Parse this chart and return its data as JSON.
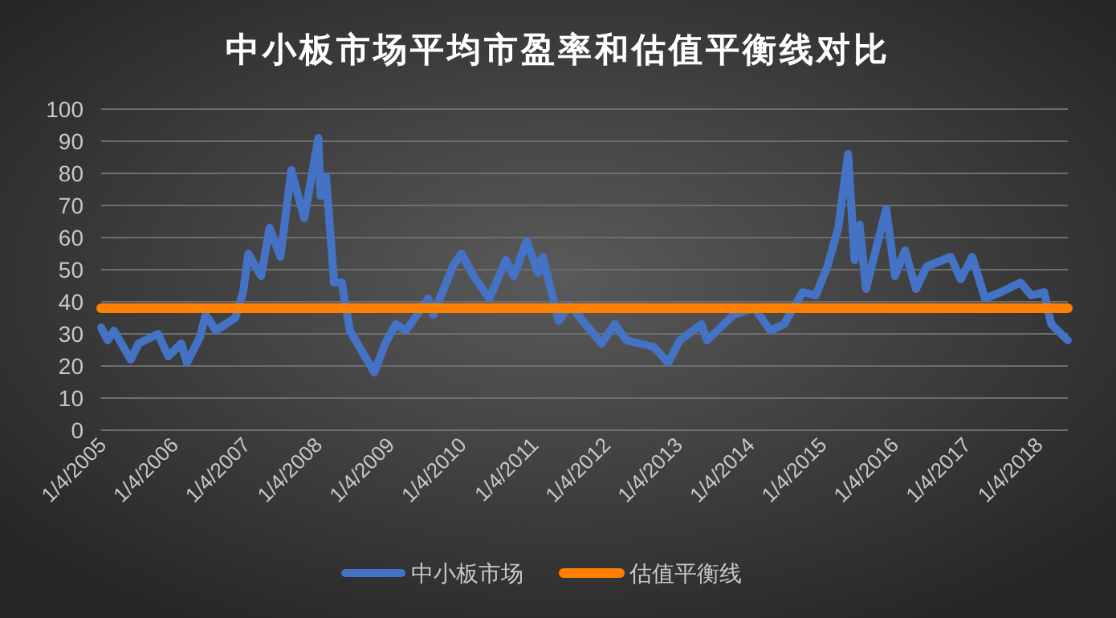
{
  "chart_data": {
    "type": "line",
    "title": "中小板市场平均市盈率和估值平衡线对比",
    "x": [
      "2005-01-04",
      "2005-02-06",
      "2005-03-10",
      "2005-06-03",
      "2005-07-13",
      "2005-10-20",
      "2005-12-10",
      "2006-02-14",
      "2006-03-15",
      "2006-05-20",
      "2006-06-18",
      "2006-08-08",
      "2006-11-15",
      "2006-12-25",
      "2007-01-20",
      "2007-03-26",
      "2007-05-08",
      "2007-07-02",
      "2007-08-26",
      "2007-10-31",
      "2008-01-10",
      "2008-01-21",
      "2008-02-18",
      "2008-03-30",
      "2008-05-08",
      "2008-06-18",
      "2008-10-20",
      "2008-12-14",
      "2009-02-06",
      "2009-03-29",
      "2009-07-20",
      "2009-08-15",
      "2009-11-22",
      "2010-01-04",
      "2010-03-08",
      "2010-05-26",
      "2010-08-18",
      "2010-09-27",
      "2010-12-02",
      "2011-01-27",
      "2011-02-21",
      "2011-05-12",
      "2011-07-08",
      "2011-12-16",
      "2012-02-20",
      "2012-04-20",
      "2012-09-05",
      "2012-11-18",
      "2013-01-16",
      "2013-05-05",
      "2013-06-03",
      "2013-10-16",
      "2014-01-30",
      "2014-04-20",
      "2014-06-28",
      "2014-10-01",
      "2014-12-06",
      "2015-02-03",
      "2015-03-30",
      "2015-05-19",
      "2015-06-21",
      "2015-07-16",
      "2015-08-18",
      "2015-11-28",
      "2016-01-12",
      "2016-03-03",
      "2016-04-27",
      "2016-06-21",
      "2016-10-20",
      "2016-12-10",
      "2017-02-06",
      "2017-04-12",
      "2017-07-02",
      "2017-10-09",
      "2017-12-03",
      "2018-02-06",
      "2018-03-14",
      "2018-06-06"
    ],
    "series": [
      {
        "name": "中小板市场",
        "color": "#4472c4",
        "values": [
          32,
          28,
          31,
          22,
          27,
          30,
          23,
          27,
          21,
          29,
          36,
          31,
          35,
          43,
          55,
          48,
          63,
          54,
          81,
          66,
          91,
          73,
          79,
          46,
          46,
          31,
          18,
          27,
          33,
          31,
          41,
          36,
          51,
          55,
          48,
          41,
          53,
          48,
          59,
          49,
          54,
          34,
          39,
          27,
          33,
          28,
          26,
          21,
          28,
          33,
          28,
          36,
          38,
          31,
          33,
          43,
          42,
          51,
          63,
          86,
          53,
          64,
          44,
          69,
          48,
          56,
          44,
          51,
          54,
          47,
          54,
          41,
          43,
          46,
          42,
          43,
          33,
          28
        ]
      },
      {
        "name": "估值平衡线",
        "color": "#ff7f00",
        "x": [
          "2005-01-04",
          "2018-06-06"
        ],
        "values": [
          38,
          38
        ]
      }
    ],
    "xlim": [
      "2005-01-04",
      "2018-06-06"
    ],
    "xticks": [
      {
        "value": "2005-01-04",
        "label": "1/4/2005"
      },
      {
        "value": "2006-01-04",
        "label": "1/4/2006"
      },
      {
        "value": "2007-01-04",
        "label": "1/4/2007"
      },
      {
        "value": "2008-01-04",
        "label": "1/4/2008"
      },
      {
        "value": "2009-01-04",
        "label": "1/4/2009"
      },
      {
        "value": "2010-01-04",
        "label": "1/4/2010"
      },
      {
        "value": "2011-01-04",
        "label": "1/4/2011"
      },
      {
        "value": "2012-01-04",
        "label": "1/4/2012"
      },
      {
        "value": "2013-01-04",
        "label": "1/4/2013"
      },
      {
        "value": "2014-01-04",
        "label": "1/4/2014"
      },
      {
        "value": "2015-01-04",
        "label": "1/4/2015"
      },
      {
        "value": "2016-01-04",
        "label": "1/4/2016"
      },
      {
        "value": "2017-01-04",
        "label": "1/4/2017"
      },
      {
        "value": "2018-01-04",
        "label": "1/4/2018"
      }
    ],
    "ylim": [
      0,
      100
    ],
    "yticks": [
      0,
      10,
      20,
      30,
      40,
      50,
      60,
      70,
      80,
      90,
      100
    ],
    "grid": "y",
    "legend": "bottom"
  }
}
